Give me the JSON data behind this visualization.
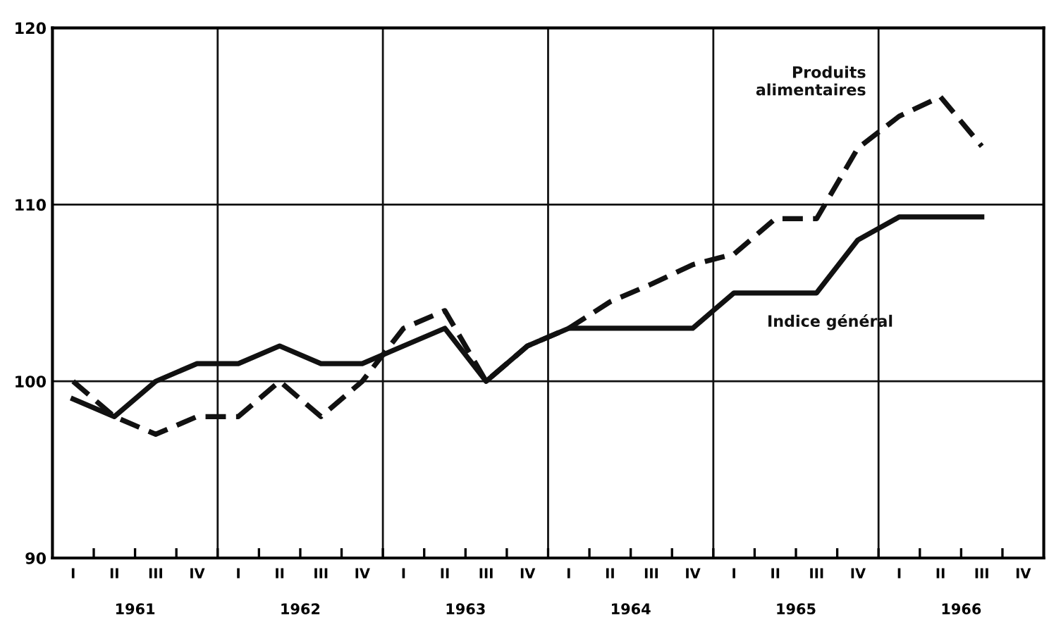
{
  "chart_data": {
    "type": "line",
    "categories": [
      "I",
      "II",
      "III",
      "IV",
      "I",
      "II",
      "III",
      "IV",
      "I",
      "II",
      "III",
      "IV",
      "I",
      "II",
      "III",
      "IV",
      "I",
      "II",
      "III",
      "IV",
      "I",
      "II",
      "III",
      "IV"
    ],
    "series": [
      {
        "name": "Indice général",
        "color": "#111111",
        "line_style": "solid",
        "values": [
          99,
          98,
          100,
          101,
          101,
          102,
          101,
          101,
          102,
          103,
          100,
          102,
          103,
          103,
          103,
          103,
          105,
          105,
          105,
          108,
          109.3,
          109.3,
          109.3,
          null
        ]
      },
      {
        "name": "Produits\nalimentaires",
        "color": "#111111",
        "line_style": "dashed",
        "values": [
          100,
          98,
          97,
          98,
          98,
          100,
          98,
          100,
          103,
          104,
          100,
          102,
          103,
          104.5,
          105.5,
          106.6,
          107.2,
          109.2,
          109.2,
          113.2,
          115,
          116.1,
          113.3,
          null
        ]
      }
    ],
    "annotations": [
      "1961",
      "1962",
      "1963",
      "1964",
      "1965",
      "1966"
    ],
    "ylim": [
      90,
      120
    ],
    "yticks": [
      90,
      100,
      110,
      120
    ],
    "grid": true,
    "marker": "none"
  }
}
